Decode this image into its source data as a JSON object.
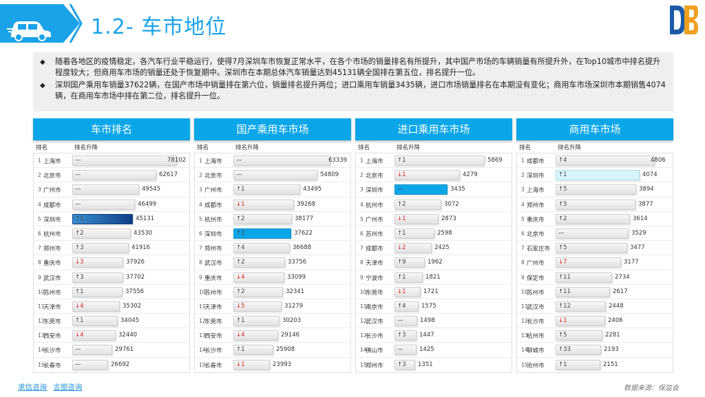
{
  "header": {
    "title": "1.2- 车市地位",
    "icon": "car-icon",
    "brand_icon": "brand-logo-icon",
    "accent_color": "#1aa3e8"
  },
  "summary": {
    "bullets": [
      "随着各地区的疫情稳定，各汽车行业平稳运行，使得7月深圳车市恢复正常水平，在各个市场的销量排名有所提升，其中国产市场的车辆销量有所提升外，在Top10城市中排名提升程度较大；但商用车市场的销量还处于恢复期中。深圳市在本期总体汽车销量达到45131辆全国排在第五位，排名提升一位。",
      "深圳国产乘用车销量37622辆，在国产市场中销量排在第六位，销量排名提升两位；进口乘用车销量3435辆，进口市场销量排名在本期没有变化；商用车市场深圳市本期销售4074辆，在商用车市场中排在第二位，排名提升一位。"
    ]
  },
  "panel_columns": {
    "rank": "排名",
    "change": "排名升降"
  },
  "chart_data": [
    {
      "type": "bar",
      "title": "车市排名",
      "xlim": [
        0,
        80000
      ],
      "ranks": [
        1,
        2,
        3,
        4,
        5,
        6,
        7,
        8,
        9,
        10,
        11,
        12,
        13,
        14,
        15
      ],
      "categories": [
        "上海市",
        "北京市",
        "广州市",
        "成都市",
        "深圳市",
        "杭州市",
        "郑州市",
        "重庆市",
        "武汉市",
        "苏州市",
        "天津市",
        "东莞市",
        "西安市",
        "长沙市",
        "长春市"
      ],
      "changes": [
        "—",
        "—",
        "—",
        "—",
        "↑1",
        "↑2",
        "↑3",
        "↓3",
        "↑3",
        "↑1",
        "↓4",
        "↑1",
        "↓4",
        "—",
        "—"
      ],
      "values": [
        78102,
        62617,
        49545,
        46499,
        45131,
        43530,
        41916,
        37926,
        37702,
        37556,
        35302,
        34045,
        32440,
        29761,
        26692
      ],
      "highlight_index": 4,
      "highlight_style": "hl-dark"
    },
    {
      "type": "bar",
      "title": "国产乘用车市场",
      "xlim": [
        0,
        70000
      ],
      "ranks": [
        1,
        2,
        3,
        4,
        5,
        6,
        7,
        8,
        9,
        10,
        11,
        12,
        13,
        14,
        15
      ],
      "categories": [
        "上海市",
        "北京市",
        "广州市",
        "成都市",
        "杭州市",
        "深圳市",
        "郑州市",
        "武汉市",
        "重庆市",
        "苏州市",
        "天津市",
        "东莞市",
        "西安市",
        "长沙市",
        "长春市"
      ],
      "changes": [
        "—",
        "—",
        "↑1",
        "↓1",
        "↑2",
        "↑2",
        "↑4",
        "↑2",
        "↓4",
        "↑2",
        "↓5",
        "↑1",
        "↓4",
        "↑1",
        "↓1"
      ],
      "values": [
        63339,
        54809,
        43495,
        39268,
        38177,
        37622,
        36688,
        33756,
        33099,
        32341,
        31279,
        30203,
        29146,
        25908,
        23993
      ],
      "highlight_index": 5,
      "highlight_style": "hl-blue"
    },
    {
      "type": "bar",
      "title": "进口乘用车市场",
      "xlim": [
        0,
        7000
      ],
      "ranks": [
        1,
        2,
        3,
        4,
        5,
        6,
        7,
        8,
        9,
        10,
        11,
        12,
        13,
        14,
        15
      ],
      "categories": [
        "上海市",
        "北京市",
        "深圳市",
        "杭州市",
        "广州市",
        "苏州市",
        "成都市",
        "天津市",
        "宁波市",
        "东莞市",
        "南京市",
        "武汉市",
        "长沙市",
        "佛山市",
        "郑州市"
      ],
      "changes": [
        "↑1",
        "↓1",
        "—",
        "↑2",
        "↓1",
        "↑1",
        "↓2",
        "↑9",
        "↑1",
        "↓1",
        "↑4",
        "—",
        "↑3",
        "—",
        "↑3"
      ],
      "values": [
        5869,
        4279,
        3435,
        3072,
        2873,
        2598,
        2425,
        1962,
        1821,
        1721,
        1575,
        1498,
        1447,
        1425,
        1351
      ],
      "highlight_index": 2,
      "highlight_style": "hl-blue"
    },
    {
      "type": "bar",
      "title": "商用车市场",
      "xlim": [
        0,
        5200
      ],
      "ranks": [
        1,
        2,
        3,
        4,
        5,
        6,
        7,
        8,
        9,
        10,
        11,
        12,
        13,
        14,
        15
      ],
      "categories": [
        "成都市",
        "深圳市",
        "上海市",
        "郑州市",
        "重庆市",
        "北京市",
        "石家庄市",
        "广州市",
        "保定市",
        "苏州市",
        "武汉市",
        "长沙市",
        "杭州市",
        "聊城市",
        "沧州市"
      ],
      "changes": [
        "↑4",
        "↑1",
        "↑5",
        "↑5",
        "↑2",
        "—",
        "↑5",
        "↓7",
        "↑11",
        "↑11",
        "↑12",
        "↓1",
        "↑5",
        "↑33",
        "↑1"
      ],
      "values": [
        4806,
        4074,
        3894,
        3877,
        3614,
        3529,
        3477,
        3177,
        2734,
        2617,
        2448,
        2406,
        2281,
        2193,
        2151
      ],
      "highlight_index": 1,
      "highlight_style": "hl-light"
    }
  ],
  "footer": {
    "links": [
      "求信咨询",
      "言图咨询"
    ],
    "source": "数据来源：保监会"
  }
}
